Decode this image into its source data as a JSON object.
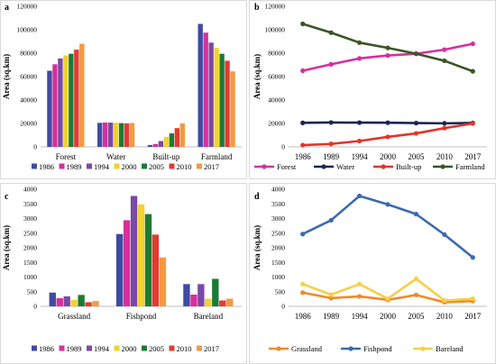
{
  "years": [
    "1986",
    "1989",
    "1994",
    "2000",
    "2005",
    "2010",
    "2017"
  ],
  "year_colors": [
    "#3f4aa2",
    "#d6309a",
    "#7b49a6",
    "#f2d22d",
    "#1c7a35",
    "#e23b30",
    "#f39a42"
  ],
  "chart_data": [
    {
      "id": "a",
      "type": "bar",
      "ylabel": "Area (sq.km)",
      "ylim": [
        0,
        120000
      ],
      "yticks": [
        "0",
        "20000",
        "40000",
        "60000",
        "80000",
        "100000",
        "120000"
      ],
      "categories": [
        "Forest",
        "Water",
        "Built-up",
        "Farmland"
      ],
      "series": [
        {
          "name": "1986",
          "values": [
            65000,
            20500,
            1500,
            105000
          ]
        },
        {
          "name": "1989",
          "values": [
            70500,
            20800,
            2500,
            97500
          ]
        },
        {
          "name": "1994",
          "values": [
            75500,
            20700,
            5000,
            89000
          ]
        },
        {
          "name": "2000",
          "values": [
            78000,
            20600,
            8500,
            84500
          ]
        },
        {
          "name": "2005",
          "values": [
            79500,
            20300,
            11500,
            79500
          ]
        },
        {
          "name": "2010",
          "values": [
            83000,
            20100,
            16000,
            73500
          ]
        },
        {
          "name": "2017",
          "values": [
            88000,
            20400,
            20000,
            64500
          ]
        }
      ],
      "grid": false,
      "legend": "bottom"
    },
    {
      "id": "b",
      "type": "line",
      "ylabel": "Area (sq.km)",
      "ylim": [
        0,
        120000
      ],
      "yticks": [
        "0",
        "20000",
        "40000",
        "60000",
        "80000",
        "100000",
        "120000"
      ],
      "x": [
        "1986",
        "1989",
        "1994",
        "2000",
        "2005",
        "2010",
        "2017"
      ],
      "series": [
        {
          "name": "Forest",
          "color": "#d52fa0",
          "values": [
            65000,
            70500,
            75500,
            78000,
            79500,
            83000,
            88000
          ]
        },
        {
          "name": "Water",
          "color": "#1c2452",
          "values": [
            20500,
            20800,
            20700,
            20600,
            20300,
            20100,
            20400
          ]
        },
        {
          "name": "Built-up",
          "color": "#e4342a",
          "values": [
            1500,
            2500,
            5000,
            8500,
            11500,
            16000,
            20000
          ]
        },
        {
          "name": "Farmland",
          "color": "#3c5424",
          "values": [
            105000,
            97500,
            89000,
            84500,
            79500,
            73500,
            64500
          ]
        }
      ],
      "grid": false,
      "legend": "bottom"
    },
    {
      "id": "c",
      "type": "bar",
      "ylabel": "Area (sq.km)",
      "ylim": [
        0,
        4000
      ],
      "yticks": [
        "0",
        "500",
        "1000",
        "1500",
        "2000",
        "2500",
        "3000",
        "3500",
        "4000"
      ],
      "categories": [
        "Grassland",
        "Fishpond",
        "Bareland"
      ],
      "series": [
        {
          "name": "1986",
          "values": [
            470,
            2470,
            760
          ]
        },
        {
          "name": "1989",
          "values": [
            280,
            2940,
            400
          ]
        },
        {
          "name": "1994",
          "values": [
            340,
            3770,
            760
          ]
        },
        {
          "name": "2000",
          "values": [
            220,
            3480,
            260
          ]
        },
        {
          "name": "2005",
          "values": [
            390,
            3150,
            940
          ]
        },
        {
          "name": "2010",
          "values": [
            140,
            2450,
            200
          ]
        },
        {
          "name": "2017",
          "values": [
            180,
            1670,
            260
          ]
        }
      ],
      "grid": false,
      "legend": "bottom"
    },
    {
      "id": "d",
      "type": "line",
      "ylabel": "Area (sq.km)",
      "ylim": [
        0,
        4000
      ],
      "yticks": [
        "0",
        "500",
        "1000",
        "1500",
        "2000",
        "2500",
        "3000",
        "3500",
        "4000"
      ],
      "x": [
        "1986",
        "1989",
        "1994",
        "2000",
        "2005",
        "2010",
        "2017"
      ],
      "series": [
        {
          "name": "Grassland",
          "color": "#f08a2c",
          "values": [
            470,
            280,
            340,
            220,
            390,
            140,
            180
          ]
        },
        {
          "name": "Fishpond",
          "color": "#3c6ab0",
          "values": [
            2470,
            2940,
            3770,
            3480,
            3150,
            2450,
            1670
          ]
        },
        {
          "name": "Bareland",
          "color": "#f6d046",
          "values": [
            760,
            400,
            760,
            260,
            940,
            200,
            260
          ]
        }
      ],
      "grid": false,
      "legend": "bottom"
    }
  ]
}
